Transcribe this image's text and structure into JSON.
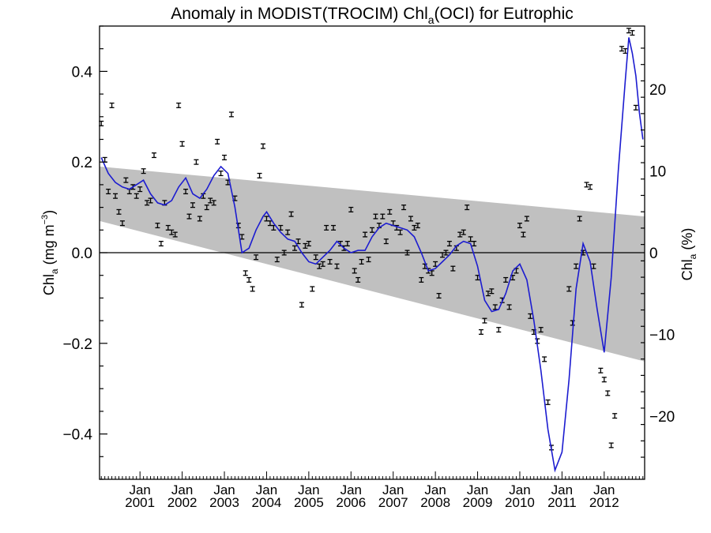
{
  "chart_data": {
    "type": "scatter",
    "title": "Anomaly in MODIST(TROCIM) Chl",
    "title_sub": "a",
    "title_tail": "(OCI) for Eutrophic",
    "ylabel_left": {
      "main": "Chl",
      "sub": "a",
      "unit_pre": " (mg m",
      "unit_sup": "−3",
      "unit_post": ")"
    },
    "ylabel_right": {
      "main": "Chl",
      "sub": "a",
      "unit": " (%)"
    },
    "ylim_left": [
      -0.5,
      0.5
    ],
    "ylim_right": [
      -27.7,
      27.7
    ],
    "yticks_left": [
      {
        "v": 0.4,
        "label": "0.4"
      },
      {
        "v": 0.2,
        "label": "0.2"
      },
      {
        "v": 0.0,
        "label": "0.0"
      },
      {
        "v": -0.2,
        "label": "−0.2"
      },
      {
        "v": -0.4,
        "label": "−0.4"
      }
    ],
    "yticks_right": [
      {
        "v": 20,
        "label": "20"
      },
      {
        "v": 10,
        "label": "10"
      },
      {
        "v": 0,
        "label": "0"
      },
      {
        "v": -10,
        "label": "−10"
      },
      {
        "v": -20,
        "label": "−20"
      }
    ],
    "xlim": [
      "2000-02",
      "2012-12"
    ],
    "xticks": [
      {
        "date": "2001-01",
        "month": "Jan",
        "year": "2001"
      },
      {
        "date": "2002-01",
        "month": "Jan",
        "year": "2002"
      },
      {
        "date": "2003-01",
        "month": "Jan",
        "year": "2003"
      },
      {
        "date": "2004-01",
        "month": "Jan",
        "year": "2004"
      },
      {
        "date": "2005-01",
        "month": "Jan",
        "year": "2005"
      },
      {
        "date": "2006-01",
        "month": "Jan",
        "year": "2006"
      },
      {
        "date": "2007-01",
        "month": "Jan",
        "year": "2007"
      },
      {
        "date": "2008-01",
        "month": "Jan",
        "year": "2008"
      },
      {
        "date": "2009-01",
        "month": "Jan",
        "year": "2009"
      },
      {
        "date": "2010-01",
        "month": "Jan",
        "year": "2010"
      },
      {
        "date": "2011-01",
        "month": "Jan",
        "year": "2011"
      },
      {
        "date": "2012-01",
        "month": "Jan",
        "year": "2012"
      }
    ],
    "trend_band": {
      "start": "2000-02",
      "end": "2012-12",
      "upper": [
        0.19,
        0.08
      ],
      "lower": [
        0.07,
        -0.24
      ],
      "color": "#c0c0c0"
    },
    "zero_line": true,
    "grid": false,
    "series": [
      {
        "kind": "monthly_anomaly",
        "color": "#000000",
        "error": 0.005,
        "points": [
          [
            "2000-02",
            0.285
          ],
          [
            "2000-03",
            0.205
          ],
          [
            "2000-04",
            0.135
          ],
          [
            "2000-05",
            0.325
          ],
          [
            "2000-06",
            0.125
          ],
          [
            "2000-07",
            0.09
          ],
          [
            "2000-08",
            0.065
          ],
          [
            "2000-09",
            0.16
          ],
          [
            "2000-10",
            0.135
          ],
          [
            "2000-11",
            0.145
          ],
          [
            "2000-12",
            0.125
          ],
          [
            "2001-01",
            0.14
          ],
          [
            "2001-02",
            0.18
          ],
          [
            "2001-03",
            0.11
          ],
          [
            "2001-04",
            0.115
          ],
          [
            "2001-05",
            0.215
          ],
          [
            "2001-06",
            0.06
          ],
          [
            "2001-07",
            0.02
          ],
          [
            "2001-08",
            0.11
          ],
          [
            "2001-09",
            0.055
          ],
          [
            "2001-10",
            0.045
          ],
          [
            "2001-11",
            0.04
          ],
          [
            "2001-12",
            0.325
          ],
          [
            "2002-01",
            0.24
          ],
          [
            "2002-02",
            0.135
          ],
          [
            "2002-03",
            0.08
          ],
          [
            "2002-04",
            0.105
          ],
          [
            "2002-05",
            0.2
          ],
          [
            "2002-06",
            0.075
          ],
          [
            "2002-07",
            0.125
          ],
          [
            "2002-08",
            0.1
          ],
          [
            "2002-09",
            0.115
          ],
          [
            "2002-10",
            0.11
          ],
          [
            "2002-11",
            0.245
          ],
          [
            "2002-12",
            0.175
          ],
          [
            "2003-01",
            0.21
          ],
          [
            "2003-02",
            0.155
          ],
          [
            "2003-03",
            0.305
          ],
          [
            "2003-04",
            0.12
          ],
          [
            "2003-05",
            0.06
          ],
          [
            "2003-06",
            0.035
          ],
          [
            "2003-07",
            -0.045
          ],
          [
            "2003-08",
            -0.06
          ],
          [
            "2003-09",
            -0.08
          ],
          [
            "2003-10",
            -0.01
          ],
          [
            "2003-11",
            0.17
          ],
          [
            "2003-12",
            0.235
          ],
          [
            "2004-01",
            0.075
          ],
          [
            "2004-02",
            0.065
          ],
          [
            "2004-03",
            0.055
          ],
          [
            "2004-04",
            -0.015
          ],
          [
            "2004-05",
            0.055
          ],
          [
            "2004-06",
            0.0
          ],
          [
            "2004-07",
            0.045
          ],
          [
            "2004-08",
            0.085
          ],
          [
            "2004-09",
            0.01
          ],
          [
            "2004-10",
            0.025
          ],
          [
            "2004-11",
            -0.115
          ],
          [
            "2004-12",
            0.015
          ],
          [
            "2005-01",
            0.02
          ],
          [
            "2005-02",
            -0.08
          ],
          [
            "2005-03",
            -0.01
          ],
          [
            "2005-04",
            -0.03
          ],
          [
            "2005-05",
            -0.025
          ],
          [
            "2005-06",
            0.055
          ],
          [
            "2005-07",
            -0.02
          ],
          [
            "2005-08",
            0.055
          ],
          [
            "2005-09",
            -0.03
          ],
          [
            "2005-10",
            0.02
          ],
          [
            "2005-11",
            0.01
          ],
          [
            "2005-12",
            0.02
          ],
          [
            "2006-01",
            0.095
          ],
          [
            "2006-02",
            -0.04
          ],
          [
            "2006-03",
            -0.06
          ],
          [
            "2006-04",
            -0.02
          ],
          [
            "2006-05",
            0.04
          ],
          [
            "2006-06",
            -0.015
          ],
          [
            "2006-07",
            0.05
          ],
          [
            "2006-08",
            0.08
          ],
          [
            "2006-09",
            0.06
          ],
          [
            "2006-10",
            0.08
          ],
          [
            "2006-11",
            0.025
          ],
          [
            "2006-12",
            0.09
          ],
          [
            "2007-01",
            0.065
          ],
          [
            "2007-02",
            0.055
          ],
          [
            "2007-03",
            0.045
          ],
          [
            "2007-04",
            0.1
          ],
          [
            "2007-05",
            0.0
          ],
          [
            "2007-06",
            0.075
          ],
          [
            "2007-07",
            0.055
          ],
          [
            "2007-08",
            0.06
          ],
          [
            "2007-09",
            -0.06
          ],
          [
            "2007-10",
            -0.03
          ],
          [
            "2007-11",
            -0.04
          ],
          [
            "2007-12",
            -0.045
          ],
          [
            "2008-01",
            -0.025
          ],
          [
            "2008-02",
            -0.095
          ],
          [
            "2008-03",
            -0.005
          ],
          [
            "2008-04",
            0.0
          ],
          [
            "2008-05",
            0.02
          ],
          [
            "2008-06",
            -0.035
          ],
          [
            "2008-07",
            0.01
          ],
          [
            "2008-08",
            0.04
          ],
          [
            "2008-09",
            0.045
          ],
          [
            "2008-10",
            0.1
          ],
          [
            "2008-11",
            0.03
          ],
          [
            "2008-12",
            0.02
          ],
          [
            "2009-01",
            -0.055
          ],
          [
            "2009-02",
            -0.175
          ],
          [
            "2009-03",
            -0.15
          ],
          [
            "2009-04",
            -0.09
          ],
          [
            "2009-05",
            -0.085
          ],
          [
            "2009-06",
            -0.12
          ],
          [
            "2009-07",
            -0.17
          ],
          [
            "2009-08",
            -0.105
          ],
          [
            "2009-09",
            -0.06
          ],
          [
            "2009-10",
            -0.12
          ],
          [
            "2009-11",
            -0.055
          ],
          [
            "2009-12",
            -0.04
          ],
          [
            "2010-01",
            0.06
          ],
          [
            "2010-02",
            0.04
          ],
          [
            "2010-03",
            0.075
          ],
          [
            "2010-04",
            -0.14
          ],
          [
            "2010-05",
            -0.175
          ],
          [
            "2010-06",
            -0.195
          ],
          [
            "2010-07",
            -0.17
          ],
          [
            "2010-08",
            -0.235
          ],
          [
            "2010-09",
            -0.33
          ],
          [
            "2010-10",
            -0.43
          ],
          [
            "2011-03",
            -0.08
          ],
          [
            "2011-04",
            -0.155
          ],
          [
            "2011-05",
            -0.03
          ],
          [
            "2011-06",
            0.075
          ],
          [
            "2011-07",
            0.0
          ],
          [
            "2011-08",
            0.15
          ],
          [
            "2011-09",
            0.145
          ],
          [
            "2011-10",
            -0.03
          ],
          [
            "2011-12",
            -0.26
          ],
          [
            "2012-01",
            -0.28
          ],
          [
            "2012-02",
            -0.31
          ],
          [
            "2012-03",
            -0.425
          ],
          [
            "2012-04",
            -0.36
          ],
          [
            "2012-06",
            0.45
          ],
          [
            "2012-07",
            0.445
          ],
          [
            "2012-08",
            0.49
          ],
          [
            "2012-09",
            0.485
          ],
          [
            "2012-10",
            0.32
          ]
        ]
      },
      {
        "kind": "smoothed",
        "color": "#1c1cd0",
        "points": [
          [
            "2000-02",
            0.21
          ],
          [
            "2000-04",
            0.175
          ],
          [
            "2000-06",
            0.155
          ],
          [
            "2000-08",
            0.145
          ],
          [
            "2000-10",
            0.14
          ],
          [
            "2000-12",
            0.15
          ],
          [
            "2001-02",
            0.16
          ],
          [
            "2001-04",
            0.13
          ],
          [
            "2001-06",
            0.11
          ],
          [
            "2001-08",
            0.105
          ],
          [
            "2001-10",
            0.115
          ],
          [
            "2001-12",
            0.145
          ],
          [
            "2002-02",
            0.165
          ],
          [
            "2002-04",
            0.13
          ],
          [
            "2002-06",
            0.12
          ],
          [
            "2002-08",
            0.14
          ],
          [
            "2002-10",
            0.17
          ],
          [
            "2002-12",
            0.19
          ],
          [
            "2003-02",
            0.175
          ],
          [
            "2003-04",
            0.1
          ],
          [
            "2003-06",
            0.0
          ],
          [
            "2003-08",
            0.01
          ],
          [
            "2003-10",
            0.05
          ],
          [
            "2003-12",
            0.08
          ],
          [
            "2004-01",
            0.09
          ],
          [
            "2004-03",
            0.065
          ],
          [
            "2004-05",
            0.045
          ],
          [
            "2004-07",
            0.03
          ],
          [
            "2004-09",
            0.025
          ],
          [
            "2004-11",
            0.0
          ],
          [
            "2005-01",
            -0.02
          ],
          [
            "2005-03",
            -0.025
          ],
          [
            "2005-05",
            -0.01
          ],
          [
            "2005-07",
            0.005
          ],
          [
            "2005-09",
            0.025
          ],
          [
            "2005-11",
            0.01
          ],
          [
            "2006-01",
            0.0
          ],
          [
            "2006-03",
            0.005
          ],
          [
            "2006-05",
            0.005
          ],
          [
            "2006-07",
            0.035
          ],
          [
            "2006-09",
            0.055
          ],
          [
            "2006-11",
            0.065
          ],
          [
            "2007-01",
            0.06
          ],
          [
            "2007-03",
            0.055
          ],
          [
            "2007-05",
            0.05
          ],
          [
            "2007-07",
            0.035
          ],
          [
            "2007-09",
            0.0
          ],
          [
            "2007-11",
            -0.04
          ],
          [
            "2008-01",
            -0.035
          ],
          [
            "2008-03",
            -0.02
          ],
          [
            "2008-05",
            -0.005
          ],
          [
            "2008-07",
            0.015
          ],
          [
            "2008-09",
            0.025
          ],
          [
            "2008-11",
            0.02
          ],
          [
            "2009-01",
            -0.03
          ],
          [
            "2009-03",
            -0.105
          ],
          [
            "2009-05",
            -0.13
          ],
          [
            "2009-07",
            -0.125
          ],
          [
            "2009-09",
            -0.09
          ],
          [
            "2009-11",
            -0.04
          ],
          [
            "2010-01",
            -0.025
          ],
          [
            "2010-03",
            -0.06
          ],
          [
            "2010-05",
            -0.15
          ],
          [
            "2010-07",
            -0.26
          ],
          [
            "2010-09",
            -0.39
          ],
          [
            "2010-11",
            -0.48
          ],
          [
            "2011-01",
            -0.44
          ],
          [
            "2011-03",
            -0.28
          ],
          [
            "2011-05",
            -0.08
          ],
          [
            "2011-07",
            0.02
          ],
          [
            "2011-09",
            -0.02
          ],
          [
            "2011-11",
            -0.125
          ],
          [
            "2012-01",
            -0.22
          ],
          [
            "2012-03",
            -0.055
          ],
          [
            "2012-05",
            0.18
          ],
          [
            "2012-07",
            0.38
          ],
          [
            "2012-08",
            0.475
          ],
          [
            "2012-09",
            0.44
          ],
          [
            "2012-10",
            0.39
          ],
          [
            "2012-11",
            0.31
          ],
          [
            "2012-12",
            0.25
          ]
        ]
      }
    ]
  }
}
